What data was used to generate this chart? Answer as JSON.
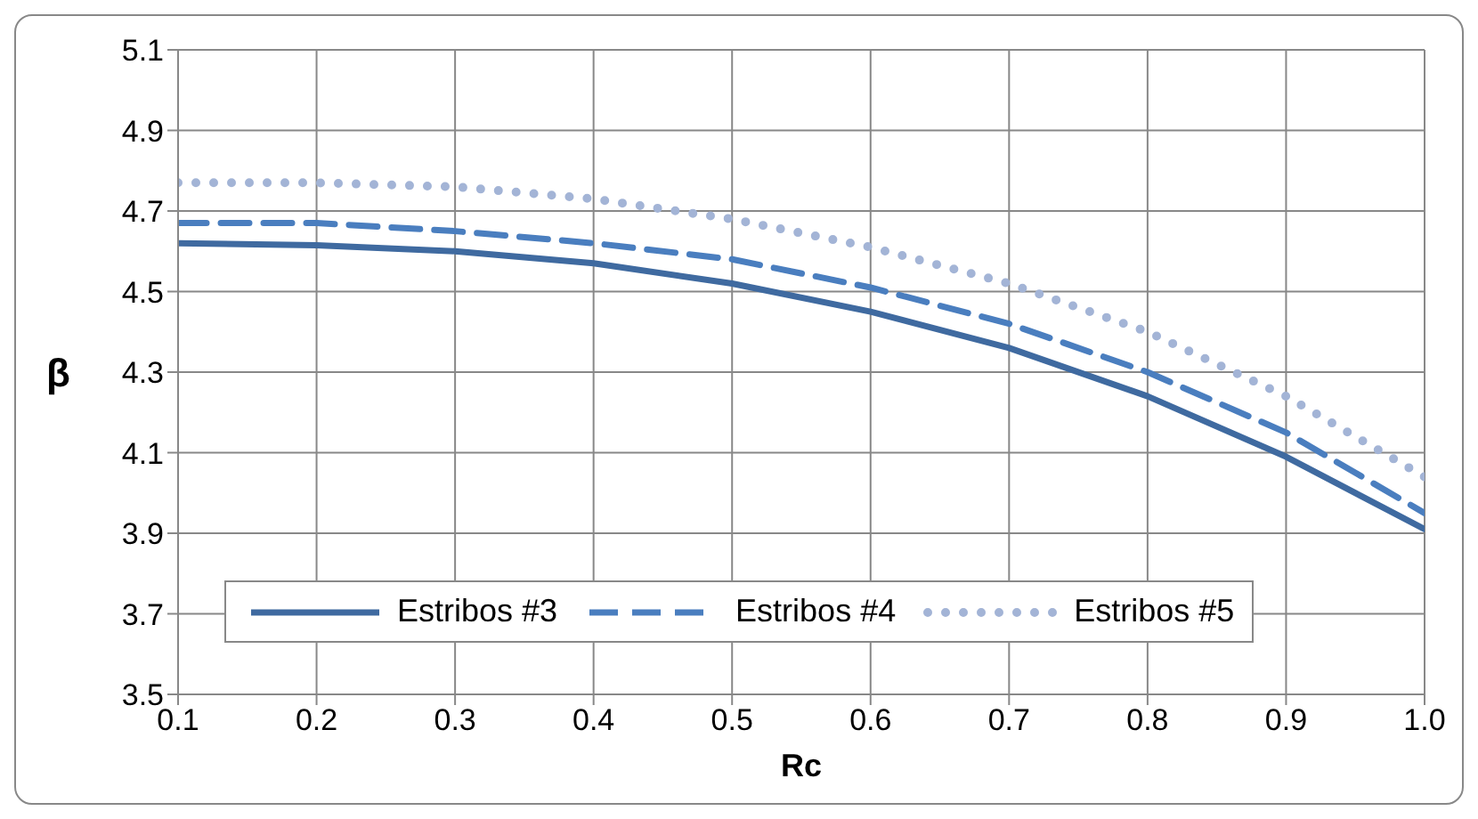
{
  "chart_data": {
    "type": "line",
    "xlabel": "Rc",
    "ylabel": "β",
    "x": [
      0.1,
      0.2,
      0.3,
      0.4,
      0.5,
      0.6,
      0.7,
      0.8,
      0.9,
      1.0
    ],
    "series": [
      {
        "name": "Estribos #3",
        "color": "#3f6aa0",
        "line_style": "solid",
        "values": [
          4.62,
          4.615,
          4.6,
          4.57,
          4.52,
          4.45,
          4.36,
          4.24,
          4.09,
          3.91
        ]
      },
      {
        "name": "Estribos #4",
        "color": "#4a7ebf",
        "line_style": "dashed",
        "values": [
          4.67,
          4.67,
          4.65,
          4.62,
          4.58,
          4.51,
          4.42,
          4.3,
          4.15,
          3.95
        ]
      },
      {
        "name": "Estribos #5",
        "color": "#a3b4d6",
        "line_style": "dotted",
        "values": [
          4.77,
          4.77,
          4.76,
          4.73,
          4.68,
          4.61,
          4.52,
          4.4,
          4.24,
          4.04
        ]
      }
    ],
    "xlim": [
      0.1,
      1.0
    ],
    "xticks": [
      0.1,
      0.2,
      0.3,
      0.4,
      0.5,
      0.6,
      0.7,
      0.8,
      0.9,
      {
        "value": 1,
        "label": "1.0"
      }
    ],
    "ylim": [
      3.5,
      5.1
    ],
    "yticks": [
      3.5,
      3.7,
      3.9,
      4.1,
      4.3,
      4.5,
      4.7,
      4.9,
      5.1
    ],
    "grid": true,
    "legend": "bottom left",
    "marker": "none"
  }
}
